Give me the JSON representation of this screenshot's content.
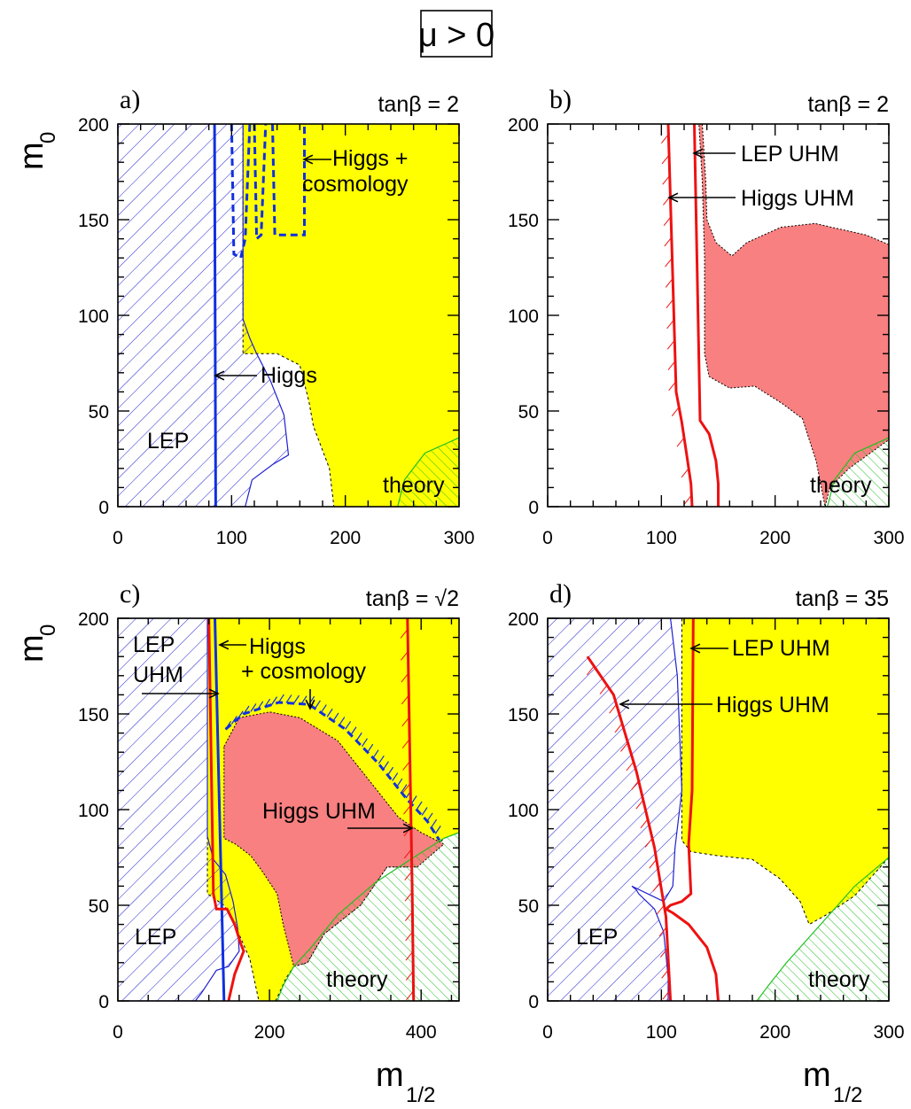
{
  "chart_data": {
    "type": "region-map",
    "header_label": "μ > 0",
    "xlabel": "m",
    "xlabel_sub": "1/2",
    "ylabel": "m",
    "ylabel_sub": "0",
    "colors": {
      "cosmology_allowed": "#ffff00",
      "uhm_allowed": "#f88080",
      "lep_hatch": "#2020d0",
      "theory_hatch": "#20c020",
      "higgs_line": "#1030e0",
      "uhm_line": "#ee1111"
    },
    "panels": [
      {
        "id": "a",
        "letter": "a)",
        "tanb_label": "tanβ = 2",
        "xlim": [
          0,
          300
        ],
        "ylim": [
          0,
          200
        ],
        "xticks": [
          0,
          100,
          200,
          300
        ],
        "yticks": [
          0,
          50,
          100,
          150,
          200
        ],
        "xtick_labels": [
          "0",
          "100",
          "200",
          "300"
        ],
        "ytick_labels": [
          "0",
          "50",
          "100",
          "150",
          "200"
        ],
        "region_labels": [
          "LEP",
          "theory"
        ],
        "annotations": [
          "Higgs",
          "Higgs +",
          "cosmology"
        ],
        "yellow_region": [
          [
            110,
            200
          ],
          [
            300,
            200
          ],
          [
            300,
            0
          ],
          [
            190,
            0
          ],
          [
            186,
            20
          ],
          [
            172,
            42
          ],
          [
            168,
            55
          ],
          [
            160,
            74
          ],
          [
            140,
            80
          ],
          [
            110,
            80
          ]
        ],
        "lep_region": [
          [
            0,
            0
          ],
          [
            0,
            200
          ],
          [
            110,
            200
          ],
          [
            110,
            98
          ],
          [
            116,
            88
          ],
          [
            122,
            80
          ],
          [
            134,
            66
          ],
          [
            146,
            48
          ],
          [
            150,
            27
          ],
          [
            136,
            22
          ],
          [
            118,
            14
          ],
          [
            112,
            0
          ]
        ],
        "theory_region": [
          [
            246,
            0
          ],
          [
            300,
            0
          ],
          [
            300,
            36
          ],
          [
            270,
            28
          ],
          [
            252,
            14
          ]
        ],
        "higgs_line": [
          [
            85,
            200
          ],
          [
            86,
            0
          ]
        ],
        "cosmo_dashed_1": [
          [
            100,
            200
          ],
          [
            102,
            132
          ],
          [
            108,
            130
          ],
          [
            112,
            140
          ],
          [
            116,
            200
          ]
        ],
        "cosmo_dashed_2": [
          [
            120,
            200
          ],
          [
            122,
            140
          ],
          [
            126,
            142
          ],
          [
            130,
            200
          ]
        ],
        "cosmo_dashed_3": [
          [
            136,
            200
          ],
          [
            138,
            142
          ],
          [
            164,
            142
          ],
          [
            164,
            200
          ]
        ]
      },
      {
        "id": "b",
        "letter": "b)",
        "tanb_label": "tanβ = 2",
        "xlim": [
          0,
          300
        ],
        "ylim": [
          0,
          200
        ],
        "xticks": [
          0,
          100,
          200,
          300
        ],
        "yticks": [
          0,
          50,
          100,
          150,
          200
        ],
        "xtick_labels": [
          "0",
          "100",
          "200",
          "300"
        ],
        "ytick_labels": [
          "0",
          "50",
          "100",
          "150",
          "200"
        ],
        "region_labels": [
          "theory"
        ],
        "annotations": [
          "LEP UHM",
          "Higgs UHM"
        ],
        "pink_region": [
          [
            136,
            200
          ],
          [
            139,
            170
          ],
          [
            140,
            150
          ],
          [
            148,
            138
          ],
          [
            162,
            131
          ],
          [
            175,
            138
          ],
          [
            205,
            146
          ],
          [
            235,
            148
          ],
          [
            280,
            142
          ],
          [
            300,
            137
          ],
          [
            300,
            35
          ],
          [
            265,
            20
          ],
          [
            248,
            10
          ],
          [
            244,
            0
          ],
          [
            236,
            24
          ],
          [
            224,
            46
          ],
          [
            206,
            54
          ],
          [
            182,
            63
          ],
          [
            160,
            62
          ],
          [
            142,
            68
          ],
          [
            138,
            80
          ],
          [
            138,
            130
          ],
          [
            136,
            170
          ],
          [
            133,
            200
          ]
        ],
        "theory_region": [
          [
            246,
            0
          ],
          [
            300,
            0
          ],
          [
            300,
            36
          ],
          [
            270,
            28
          ],
          [
            252,
            14
          ]
        ],
        "higgs_uhm_line": [
          [
            106,
            200
          ],
          [
            113,
            60
          ],
          [
            118,
            44
          ],
          [
            122,
            28
          ],
          [
            126,
            12
          ],
          [
            127,
            0
          ]
        ],
        "lep_uhm_line": [
          [
            129,
            200
          ],
          [
            134,
            45
          ],
          [
            142,
            38
          ],
          [
            148,
            24
          ],
          [
            150,
            12
          ],
          [
            150,
            0
          ]
        ]
      },
      {
        "id": "c",
        "letter": "c)",
        "tanb_label": "tanβ = √2",
        "xlim": [
          0,
          450
        ],
        "ylim": [
          0,
          200
        ],
        "xticks": [
          0,
          200,
          400
        ],
        "yticks": [
          0,
          50,
          100,
          150,
          200
        ],
        "xtick_labels": [
          "0",
          "200",
          "400"
        ],
        "ytick_labels": [
          "0",
          "50",
          "100",
          "150",
          "200"
        ],
        "region_labels": [
          "LEP",
          "theory"
        ],
        "annotations": [
          "LEP",
          "UHM",
          "Higgs",
          "+ cosmology",
          "Higgs UHM"
        ],
        "yellow_region": [
          [
            118,
            200
          ],
          [
            450,
            200
          ],
          [
            450,
            88
          ],
          [
            430,
            85
          ],
          [
            395,
            70
          ],
          [
            355,
            70
          ],
          [
            320,
            50
          ],
          [
            272,
            35
          ],
          [
            250,
            20
          ],
          [
            232,
            18
          ],
          [
            222,
            12
          ],
          [
            208,
            0
          ],
          [
            186,
            0
          ],
          [
            174,
            22
          ],
          [
            152,
            42
          ],
          [
            140,
            50
          ],
          [
            118,
            56
          ]
        ],
        "pink_region": [
          [
            140,
            133
          ],
          [
            160,
            148
          ],
          [
            200,
            151
          ],
          [
            240,
            148
          ],
          [
            290,
            136
          ],
          [
            330,
            116
          ],
          [
            370,
            96
          ],
          [
            400,
            88
          ],
          [
            430,
            82
          ],
          [
            395,
            70
          ],
          [
            355,
            70
          ],
          [
            320,
            50
          ],
          [
            272,
            35
          ],
          [
            250,
            20
          ],
          [
            232,
            18
          ],
          [
            218,
            40
          ],
          [
            210,
            56
          ],
          [
            200,
            62
          ],
          [
            190,
            68
          ],
          [
            175,
            76
          ],
          [
            155,
            82
          ],
          [
            140,
            85
          ]
        ],
        "lep_region": [
          [
            0,
            0
          ],
          [
            0,
            200
          ],
          [
            118,
            200
          ],
          [
            118,
            86
          ],
          [
            126,
            74
          ],
          [
            142,
            66
          ],
          [
            152,
            52
          ],
          [
            158,
            38
          ],
          [
            160,
            26
          ],
          [
            146,
            18
          ],
          [
            130,
            16
          ],
          [
            110,
            4
          ],
          [
            102,
            0
          ]
        ],
        "theory_region": [
          [
            210,
            0
          ],
          [
            450,
            0
          ],
          [
            450,
            88
          ],
          [
            430,
            85
          ],
          [
            390,
            75
          ],
          [
            340,
            62
          ],
          [
            290,
            45
          ],
          [
            255,
            28
          ],
          [
            232,
            18
          ],
          [
            218,
            8
          ]
        ],
        "higgs_line": [
          [
            128,
            200
          ],
          [
            140,
            0
          ]
        ],
        "cosmo_dashed": [
          [
            142,
            142
          ],
          [
            166,
            150
          ],
          [
            212,
            156
          ],
          [
            252,
            155
          ],
          [
            300,
            142
          ],
          [
            344,
            124
          ],
          [
            380,
            106
          ],
          [
            408,
            94
          ],
          [
            424,
            84
          ]
        ],
        "higgs_uhm_line": [
          [
            382,
            200
          ],
          [
            388,
            62
          ],
          [
            390,
            0
          ]
        ],
        "lep_uhm_line": [
          [
            120,
            200
          ],
          [
            126,
            56
          ],
          [
            130,
            48
          ],
          [
            144,
            48
          ],
          [
            154,
            40
          ],
          [
            162,
            30
          ],
          [
            166,
            26
          ],
          [
            162,
            22
          ],
          [
            154,
            14
          ],
          [
            146,
            0
          ]
        ]
      },
      {
        "id": "d",
        "letter": "d)",
        "tanb_label": "tanβ = 35",
        "xlim": [
          0,
          300
        ],
        "ylim": [
          0,
          200
        ],
        "xticks": [
          0,
          100,
          200,
          300
        ],
        "yticks": [
          0,
          50,
          100,
          150,
          200
        ],
        "xtick_labels": [
          "0",
          "100",
          "200",
          "300"
        ],
        "ytick_labels": [
          "0",
          "50",
          "100",
          "150",
          "200"
        ],
        "region_labels": [
          "LEP",
          "theory"
        ],
        "annotations": [
          "LEP UHM",
          "Higgs UHM"
        ],
        "yellow_region": [
          [
            118,
            200
          ],
          [
            300,
            200
          ],
          [
            300,
            75
          ],
          [
            270,
            55
          ],
          [
            245,
            45
          ],
          [
            230,
            40
          ],
          [
            222,
            52
          ],
          [
            204,
            64
          ],
          [
            180,
            74
          ],
          [
            148,
            76
          ],
          [
            126,
            78
          ],
          [
            118,
            84
          ]
        ],
        "lep_region": [
          [
            0,
            0
          ],
          [
            0,
            200
          ],
          [
            108,
            200
          ],
          [
            114,
            170
          ],
          [
            116,
            140
          ],
          [
            118,
            110
          ],
          [
            112,
            80
          ],
          [
            110,
            60
          ],
          [
            102,
            52
          ],
          [
            74,
            60
          ],
          [
            78,
            58
          ],
          [
            80,
            56
          ],
          [
            94,
            48
          ],
          [
            102,
            36
          ],
          [
            104,
            24
          ],
          [
            106,
            12
          ],
          [
            106,
            0
          ]
        ],
        "theory_region": [
          [
            184,
            0
          ],
          [
            300,
            0
          ],
          [
            300,
            75
          ],
          [
            270,
            60
          ],
          [
            240,
            40
          ],
          [
            210,
            20
          ],
          [
            194,
            8
          ]
        ],
        "higgs_uhm_line": [
          [
            35,
            180
          ],
          [
            58,
            160
          ],
          [
            78,
            120
          ],
          [
            94,
            80
          ],
          [
            104,
            44
          ],
          [
            108,
            0
          ]
        ],
        "lep_uhm_line": [
          [
            128,
            200
          ],
          [
            127,
            110
          ],
          [
            124,
            82
          ],
          [
            126,
            56
          ],
          [
            118,
            52
          ],
          [
            108,
            50
          ],
          [
            104,
            48
          ],
          [
            110,
            46
          ],
          [
            124,
            40
          ],
          [
            140,
            28
          ],
          [
            148,
            14
          ],
          [
            150,
            0
          ]
        ]
      }
    ]
  }
}
